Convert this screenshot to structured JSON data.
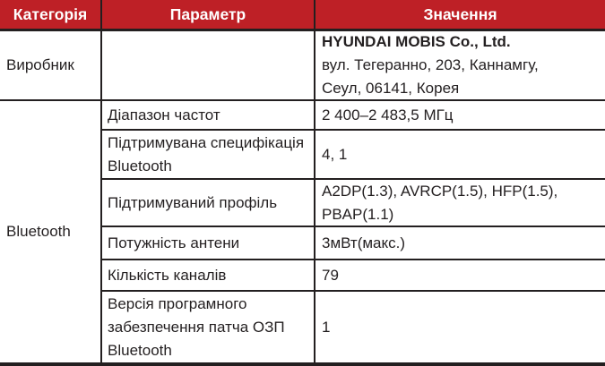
{
  "table": {
    "headers": {
      "category": "Категорія",
      "parameter": "Параметр",
      "value": "Значення"
    },
    "manufacturer": {
      "category": "Виробник",
      "parameter": "",
      "value_lines": {
        "0": "HYUNDAI MOBIS Co., Ltd.",
        "1": "вул. Тегеранно, 203, Каннамгу,",
        "2": "Сеул, 06141, Корея"
      }
    },
    "bluetooth": {
      "category": "Bluetooth",
      "rows": [
        {
          "parameter": "Діапазон частот",
          "value": "2 400–2 483,5 МГц"
        },
        {
          "parameter": "Підтримувана специфікація Bluetooth",
          "value": "4, 1"
        },
        {
          "parameter": "Підтримуваний профіль",
          "value": "A2DP(1.3), AVRCP(1.5), HFP(1.5), PBAP(1.1)"
        },
        {
          "parameter": "Потужність антени",
          "value": "3мВт(макс.)"
        },
        {
          "parameter": "Кількість каналів",
          "value": "79"
        },
        {
          "parameter": "Версія програмного забезпечення патча ОЗП Bluetooth",
          "value": "1"
        }
      ]
    },
    "colors": {
      "header_bg": "#be2026",
      "header_text": "#ffffff",
      "body_text": "#231f20",
      "border": "#231f20",
      "background": "#ffffff"
    }
  }
}
